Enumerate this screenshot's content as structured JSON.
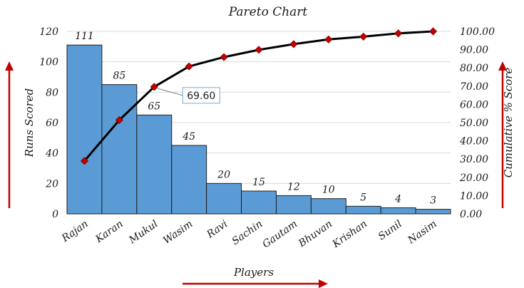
{
  "chart_data": {
    "type": "bar",
    "title": "Pareto Chart",
    "xlabel": "Players",
    "ylabel": "Runs Scored",
    "y2label": "Cumulative % Score",
    "categories": [
      "Rajan",
      "Karan",
      "Mukul",
      "Wasim",
      "Ravi",
      "Sachin",
      "Gautam",
      "Bhuvan",
      "Krishan",
      "Sunil",
      "Nasim"
    ],
    "series": [
      {
        "type": "bar",
        "axis": "left",
        "values": [
          111,
          85,
          65,
          45,
          20,
          15,
          12,
          10,
          5,
          4,
          3
        ],
        "data_labels": [
          "111",
          "85",
          "65",
          "45",
          "20",
          "15",
          "12",
          "10",
          "5",
          "4",
          "3"
        ]
      },
      {
        "type": "line",
        "axis": "right",
        "values": [
          29.0,
          51.4,
          69.6,
          80.8,
          85.9,
          89.9,
          93.0,
          95.6,
          97.1,
          98.9,
          100.0
        ]
      }
    ],
    "callout": {
      "text": "69.60",
      "category": "Mukul"
    },
    "ylim": [
      0,
      120
    ],
    "y_ticks": [
      "0",
      "20",
      "40",
      "60",
      "80",
      "100",
      "120"
    ],
    "y2lim": [
      0,
      100
    ],
    "y2_ticks": [
      "0.00",
      "10.00",
      "20.00",
      "30.00",
      "40.00",
      "50.00",
      "60.00",
      "70.00",
      "80.00",
      "90.00",
      "100.00"
    ],
    "grid": true,
    "colors": {
      "bar": "#5b9bd5",
      "bar_edge": "#1f1f1f",
      "line": "#000000",
      "marker": "#c00000",
      "arrow": "#c00000",
      "grid": "#d9d9d9",
      "callout_border": "#7fa8d0"
    }
  }
}
